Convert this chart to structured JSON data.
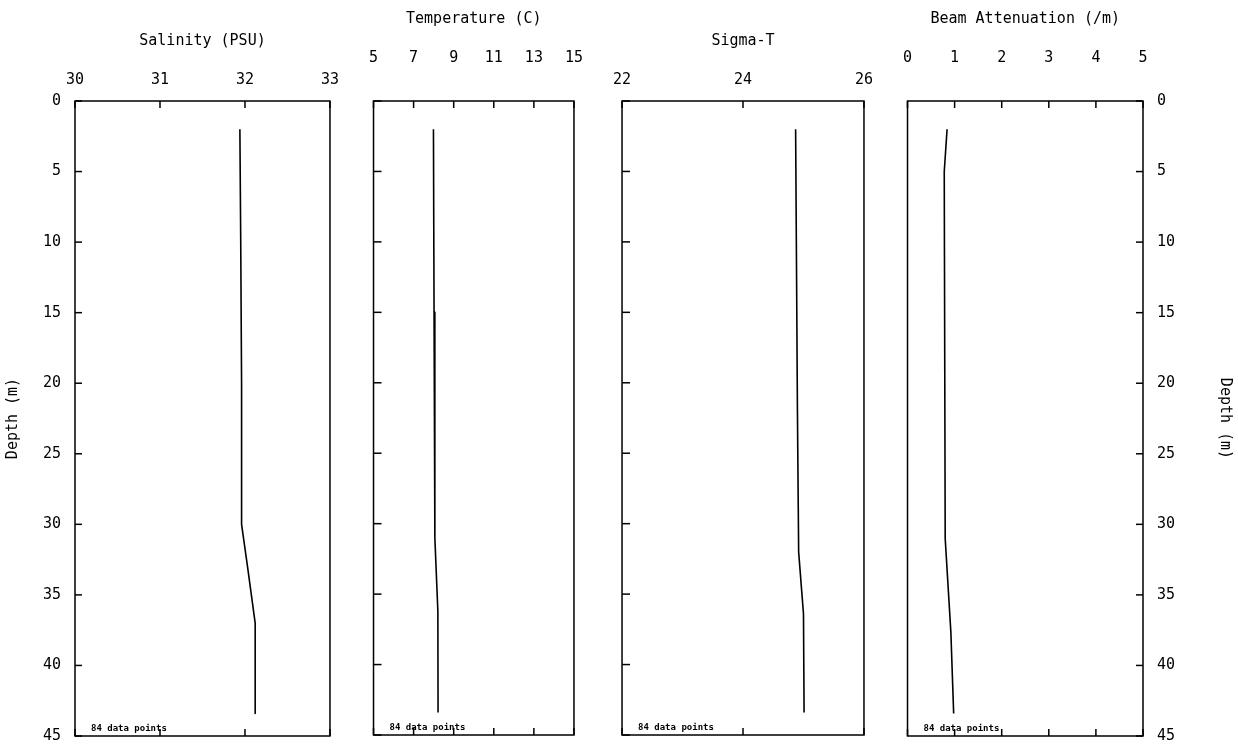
{
  "chart_data": [
    {
      "type": "line",
      "xlabel": "Salinity (PSU)",
      "ylabel": "Depth (m)",
      "xlim": [
        30,
        33
      ],
      "xticks": [
        30,
        31,
        32,
        33
      ],
      "ylim": [
        45,
        0
      ],
      "yticks": [
        0,
        5,
        10,
        15,
        20,
        25,
        30,
        35,
        40,
        45
      ],
      "grid": false,
      "legend": false,
      "marker": "none",
      "annotations": [
        "84 data points"
      ],
      "series": [
        {
          "color": "#000000",
          "x": [
            31.94,
            31.95,
            31.96,
            31.96,
            32.03,
            32.12,
            32.12
          ],
          "values": [
            2,
            10,
            20,
            30,
            33,
            37,
            43.4
          ]
        }
      ]
    },
    {
      "type": "line",
      "xlabel": "Temperature (C)",
      "xlim": [
        5,
        15
      ],
      "xticks": [
        5,
        7,
        9,
        11,
        13,
        15
      ],
      "ylim": [
        45,
        0
      ],
      "yticks": [
        0,
        5,
        10,
        15,
        20,
        25,
        30,
        35,
        40,
        45
      ],
      "tick_labels": "x",
      "grid": false,
      "legend": false,
      "marker": "none",
      "annotations": [
        "84 data points"
      ],
      "series": [
        {
          "color": "#000000",
          "x": [
            7.99,
            8.02,
            8.06,
            8.21,
            8.22
          ],
          "values": [
            2,
            15,
            31,
            36.2,
            43.4
          ]
        }
      ]
    },
    {
      "type": "line",
      "xlabel": "Sigma-T",
      "xlim": [
        22,
        26
      ],
      "xticks": [
        22,
        24,
        26
      ],
      "ylim": [
        45,
        0
      ],
      "yticks": [
        0,
        5,
        10,
        15,
        20,
        25,
        30,
        35,
        40,
        45
      ],
      "tick_labels": "x",
      "grid": false,
      "legend": false,
      "marker": "none",
      "annotations": [
        "84 data points"
      ],
      "series": [
        {
          "color": "#000000",
          "x": [
            24.87,
            24.9,
            24.92,
            25.0,
            25.01
          ],
          "values": [
            2,
            22,
            32,
            36.4,
            43.4
          ]
        }
      ]
    },
    {
      "type": "line",
      "xlabel": "Beam Attenuation (/m)",
      "y2label": "Depth (m)",
      "xlim": [
        0,
        5
      ],
      "xticks": [
        0,
        1,
        2,
        3,
        4,
        5
      ],
      "y2lim": [
        45,
        0
      ],
      "y2ticks": [
        0,
        5,
        10,
        15,
        20,
        25,
        30,
        35,
        40,
        45
      ],
      "grid": false,
      "legend": false,
      "marker": "none",
      "annotations": [
        "84 data points"
      ],
      "series": [
        {
          "color": "#000000",
          "axis": "y2",
          "x": [
            0.84,
            0.78,
            0.8,
            0.92,
            0.98
          ],
          "values": [
            2,
            5,
            31,
            37.6,
            43.4
          ]
        }
      ]
    }
  ]
}
